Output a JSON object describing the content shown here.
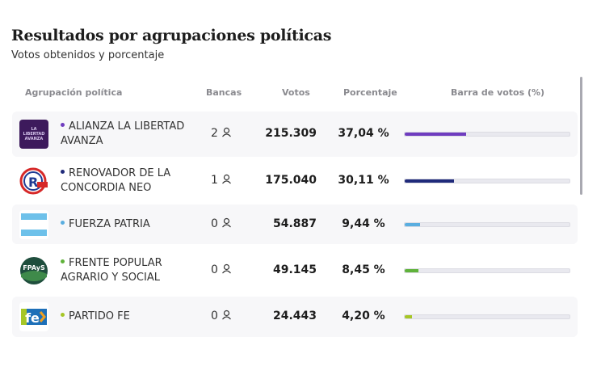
{
  "title": "Resultados por agrupaciones políticas",
  "subtitle": "Votos obtenidos y porcentaje",
  "headers": {
    "party": "Agrupación política",
    "seats": "Bancas",
    "votes": "Votos",
    "percent": "Porcentaje",
    "bar": "Barra de votos (%)"
  },
  "rows": [
    {
      "name_l1": "ALIANZA LA LIBERTAD",
      "name_l2": "AVANZA",
      "seats": "2",
      "votes": "215.309",
      "percent": "37,04 %",
      "pct": 37.04,
      "color": "#6f3cbf",
      "logo": "la-libertad-avanza-logo"
    },
    {
      "name_l1": "RENOVADOR DE LA",
      "name_l2": "CONCORDIA NEO",
      "seats": "1",
      "votes": "175.040",
      "percent": "30,11 %",
      "pct": 30.11,
      "color": "#1f2a7a",
      "logo": "renovador-logo"
    },
    {
      "name_l1": "FUERZA PATRIA",
      "name_l2": "",
      "seats": "0",
      "votes": "54.887",
      "percent": "9,44 %",
      "pct": 9.44,
      "color": "#5aaee0",
      "logo": "fuerza-patria-logo"
    },
    {
      "name_l1": "FRENTE POPULAR",
      "name_l2": "AGRARIO Y SOCIAL",
      "seats": "0",
      "votes": "49.145",
      "percent": "8,45 %",
      "pct": 8.45,
      "color": "#5fb23a",
      "logo": "fpays-logo",
      "logo_text": "FPAyS"
    },
    {
      "name_l1": "PARTIDO FE",
      "name_l2": "",
      "seats": "0",
      "votes": "24.443",
      "percent": "4,20 %",
      "pct": 4.2,
      "color": "#a6c626",
      "logo": "partido-fe-logo",
      "logo_text": "fe"
    }
  ]
}
